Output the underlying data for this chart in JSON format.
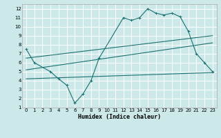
{
  "bg_color": "#cce8e8",
  "line_color": "#1a7070",
  "grid_color": "#ffffff",
  "xlabel": "Humidex (Indice chaleur)",
  "xlim": [
    -0.5,
    23.5
  ],
  "ylim": [
    1,
    12.5
  ],
  "xticks": [
    0,
    1,
    2,
    3,
    4,
    5,
    6,
    7,
    8,
    9,
    10,
    11,
    12,
    13,
    14,
    15,
    16,
    17,
    18,
    19,
    20,
    21,
    22,
    23
  ],
  "yticks": [
    1,
    2,
    3,
    4,
    5,
    6,
    7,
    8,
    9,
    10,
    11,
    12
  ],
  "line1_x": [
    0,
    1,
    3,
    4,
    5,
    6,
    7,
    8,
    9,
    12,
    13,
    14,
    15,
    16,
    17,
    18,
    19,
    20,
    21,
    22,
    23
  ],
  "line1_y": [
    7.5,
    6.0,
    5.0,
    4.2,
    3.5,
    1.5,
    2.5,
    4.0,
    6.5,
    11.0,
    10.7,
    11.0,
    12.0,
    11.5,
    11.3,
    11.5,
    11.1,
    9.5,
    7.0,
    6.0,
    5.0
  ],
  "line2_x": [
    0,
    23
  ],
  "line2_y": [
    6.5,
    9.0
  ],
  "line3_x": [
    0,
    23
  ],
  "line3_y": [
    5.2,
    8.2
  ],
  "line4_x": [
    0,
    23
  ],
  "line4_y": [
    4.2,
    4.9
  ],
  "tick_fontsize": 5,
  "xlabel_fontsize": 6
}
